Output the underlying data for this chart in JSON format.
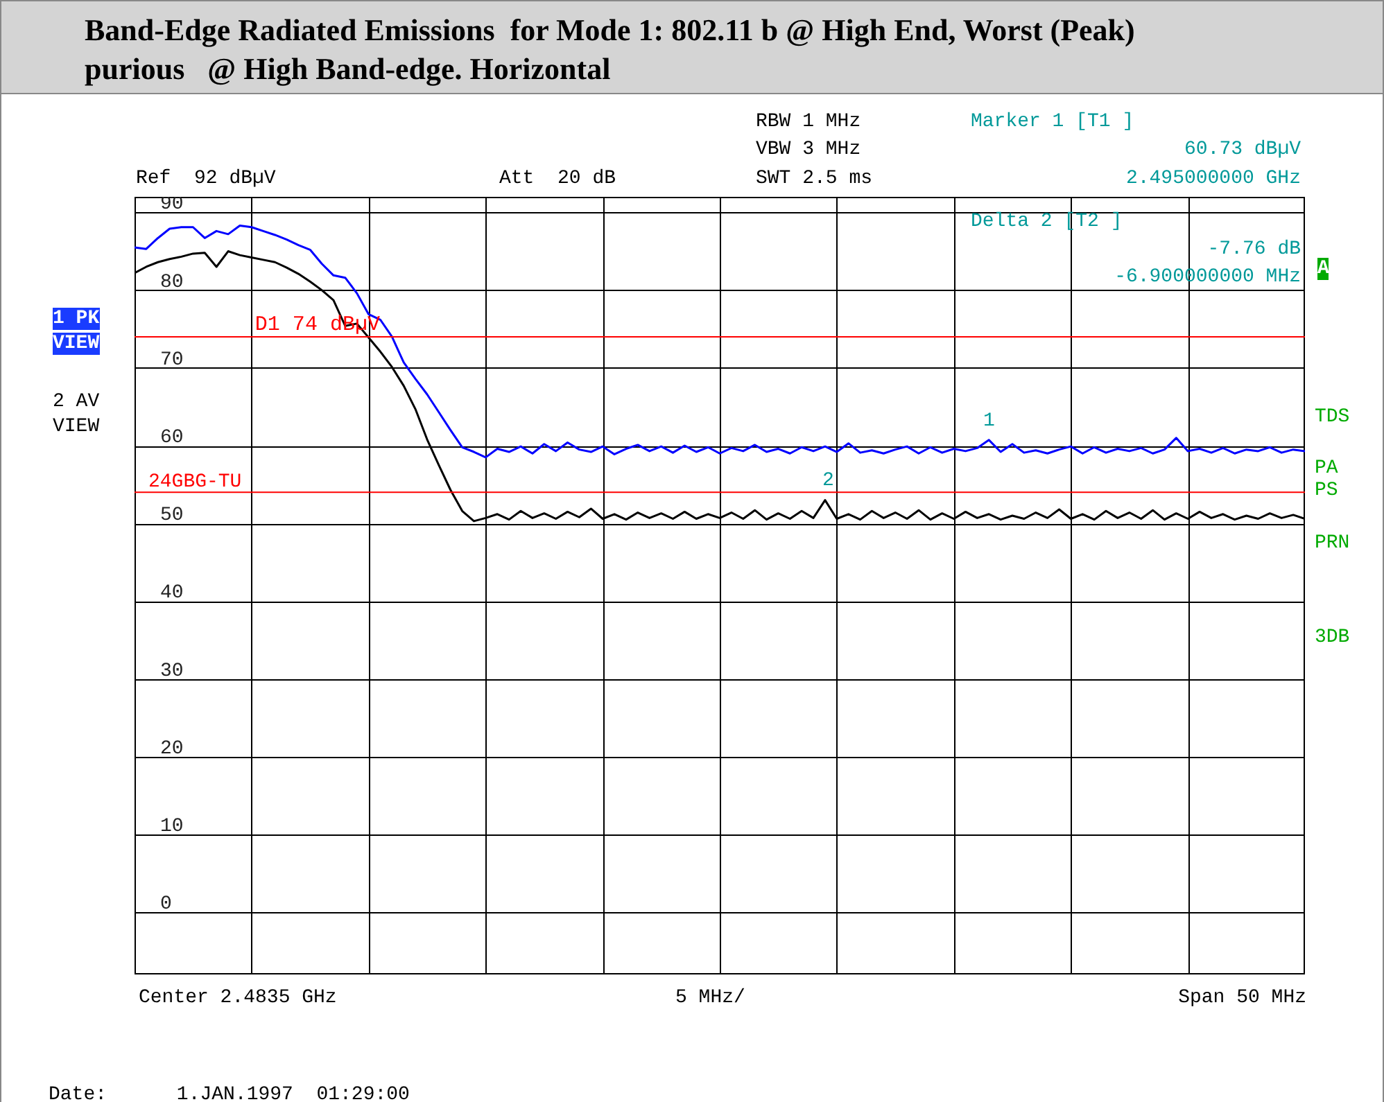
{
  "chart_data": {
    "type": "line",
    "title": "Band-Edge Radiated Emissions  for Mode 1: 802.11 b @ High End, Worst (Peak)",
    "subtitle": "purious   @ High Band-edge. Horizontal",
    "categories": [
      null,
      null,
      null,
      null,
      null,
      null,
      null,
      null,
      null,
      null,
      null,
      null,
      null,
      null,
      null,
      null,
      null,
      null,
      null,
      null,
      null,
      null,
      null,
      null,
      null,
      null,
      null,
      null,
      null,
      null,
      null,
      null,
      null,
      null,
      null,
      null,
      null,
      null,
      null,
      null,
      null,
      null,
      null,
      null,
      null,
      null,
      null,
      null,
      null,
      null,
      null,
      null,
      null,
      null,
      null,
      null,
      null,
      null,
      null,
      null,
      null,
      null,
      null,
      null,
      null,
      null,
      null,
      null,
      null,
      null,
      null,
      null,
      null,
      null,
      null,
      null,
      null,
      null,
      null,
      null,
      null,
      null,
      null,
      null,
      null,
      null,
      null,
      null,
      null,
      null,
      null,
      null,
      null,
      null,
      null,
      null,
      null,
      null,
      null,
      null,
      null
    ],
    "ylim": [
      -8,
      92
    ],
    "yticks": [
      0,
      10,
      20,
      30,
      40,
      50,
      60,
      70,
      80,
      90
    ],
    "grid": true,
    "tick_labels": "y",
    "series": [
      {
        "color": "#0000ff",
        "values": [
          85.5,
          85.3,
          86.7,
          87.9,
          88.1,
          88.1,
          86.7,
          87.6,
          87.2,
          88.3,
          88.1,
          87.6,
          87.1,
          86.5,
          85.8,
          85.2,
          83.4,
          81.9,
          81.6,
          79.6,
          76.9,
          76.2,
          74.0,
          70.7,
          68.6,
          66.6,
          64.3,
          62.0,
          59.8,
          59.2,
          58.5,
          59.6,
          59.2,
          59.9,
          59.0,
          60.2,
          59.3,
          60.4,
          59.5,
          59.2,
          59.9,
          58.9,
          59.6,
          60.1,
          59.3,
          59.9,
          59.1,
          60.0,
          59.2,
          59.8,
          59.0,
          59.7,
          59.3,
          60.1,
          59.2,
          59.6,
          59.0,
          59.8,
          59.3,
          59.9,
          59.2,
          60.3,
          59.1,
          59.4,
          59.0,
          59.5,
          59.9,
          59.0,
          59.8,
          59.1,
          59.6,
          59.3,
          59.7,
          60.73,
          59.2,
          60.2,
          59.1,
          59.4,
          59.0,
          59.5,
          59.9,
          59.0,
          59.8,
          59.1,
          59.6,
          59.3,
          59.7,
          59.0,
          59.5,
          61.0,
          59.3,
          59.6,
          59.1,
          59.7,
          59.0,
          59.5,
          59.3,
          59.8,
          59.1,
          59.5,
          59.3
        ]
      },
      {
        "color": "#000000",
        "values": [
          82.2,
          83.0,
          83.6,
          84.0,
          84.3,
          84.7,
          84.8,
          83.0,
          85.0,
          84.5,
          84.2,
          83.9,
          83.6,
          82.9,
          82.1,
          81.1,
          80.0,
          78.7,
          75.4,
          75.7,
          73.9,
          72.1,
          70.1,
          67.7,
          64.7,
          60.8,
          57.5,
          54.3,
          51.6,
          50.3,
          50.7,
          51.2,
          50.5,
          51.6,
          50.7,
          51.3,
          50.6,
          51.5,
          50.8,
          51.9,
          50.6,
          51.2,
          50.5,
          51.4,
          50.7,
          51.3,
          50.6,
          51.5,
          50.6,
          51.2,
          50.7,
          51.4,
          50.6,
          51.7,
          50.5,
          51.3,
          50.6,
          51.6,
          50.7,
          53.0,
          50.6,
          51.2,
          50.5,
          51.6,
          50.7,
          51.4,
          50.6,
          51.7,
          50.5,
          51.3,
          50.6,
          51.5,
          50.7,
          51.2,
          50.5,
          51.0,
          50.6,
          51.4,
          50.7,
          51.8,
          50.6,
          51.2,
          50.5,
          51.6,
          50.7,
          51.4,
          50.6,
          51.7,
          50.5,
          51.3,
          50.6,
          51.5,
          50.7,
          51.2,
          50.5,
          51.0,
          50.6,
          51.3,
          50.7,
          51.1,
          50.6
        ]
      }
    ],
    "ref_lines": [
      {
        "axis": "y",
        "value": 74,
        "label": "D1 74 dBµV",
        "color": "#ff0000"
      },
      {
        "axis": "y",
        "value": 54,
        "color": "#ff0000"
      }
    ],
    "annotations": [
      "RBW 1 MHz",
      "VBW 3 MHz",
      "SWT 2.5 ms",
      "Ref  92 dBµV",
      "Att  20 dB",
      "Marker 1 [T1 ]",
      "60.73 dBµV",
      "2.495000000 GHz",
      "Delta 2 [T2 ]",
      "-7.76 dB",
      "-6.900000000 MHz",
      "1 PK",
      "VIEW",
      "2 AV",
      "VIEW",
      "24GBG-TU",
      "A",
      "TDS",
      "PA",
      "PS",
      "PRN",
      "3DB",
      "Center 2.4835 GHz",
      "5 MHz/",
      "Span 50 MHz",
      "Date:      1.JAN.1997  01:29:00",
      "1",
      "2"
    ]
  }
}
